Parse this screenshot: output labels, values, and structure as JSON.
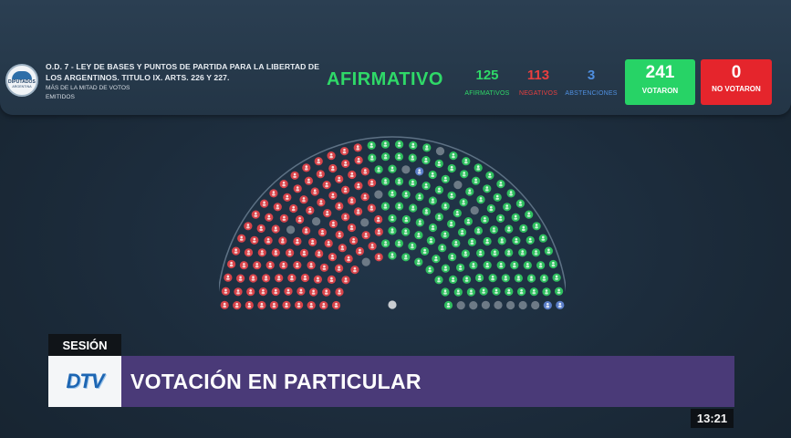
{
  "header": {
    "logo_line1": "DIPUTADOS",
    "logo_line2": "ARGENTINA",
    "title": "O.D. 7 - LEY DE BASES Y PUNTOS DE PARTIDA PARA LA LIBERTAD DE LOS ARGENTINOS. TITULO IX. ARTS. 226 Y 227.",
    "subtitle": "MÁS DE LA MITAD DE VOTOS EMITIDOS",
    "result": "AFIRMATIVO",
    "afirmativos": {
      "value": "125",
      "label": "AFIRMATIVOS"
    },
    "negativos": {
      "value": "113",
      "label": "NEGATIVOS"
    },
    "abstenciones": {
      "value": "3",
      "label": "ABSTENCIONES"
    },
    "votaron": {
      "value": "241",
      "label": "VOTARON"
    },
    "no_votaron": {
      "value": "0",
      "label": "NO VOTARON"
    }
  },
  "hemicycle": {
    "seats_total": 257,
    "affirmative": 125,
    "negative": 113,
    "abstentions": 3,
    "absent": 16,
    "colors": {
      "affirmative": "#2fbf5f",
      "negative": "#d8444a",
      "abstention": "#5b7fc9",
      "absent": "#6d7a86",
      "president": "#c9cdd1"
    }
  },
  "lower_third": {
    "session_label": "SESIÓN",
    "channel_logo": "DTV",
    "headline": "VOTACIÓN EN PARTICULAR"
  },
  "clock": "13:21"
}
